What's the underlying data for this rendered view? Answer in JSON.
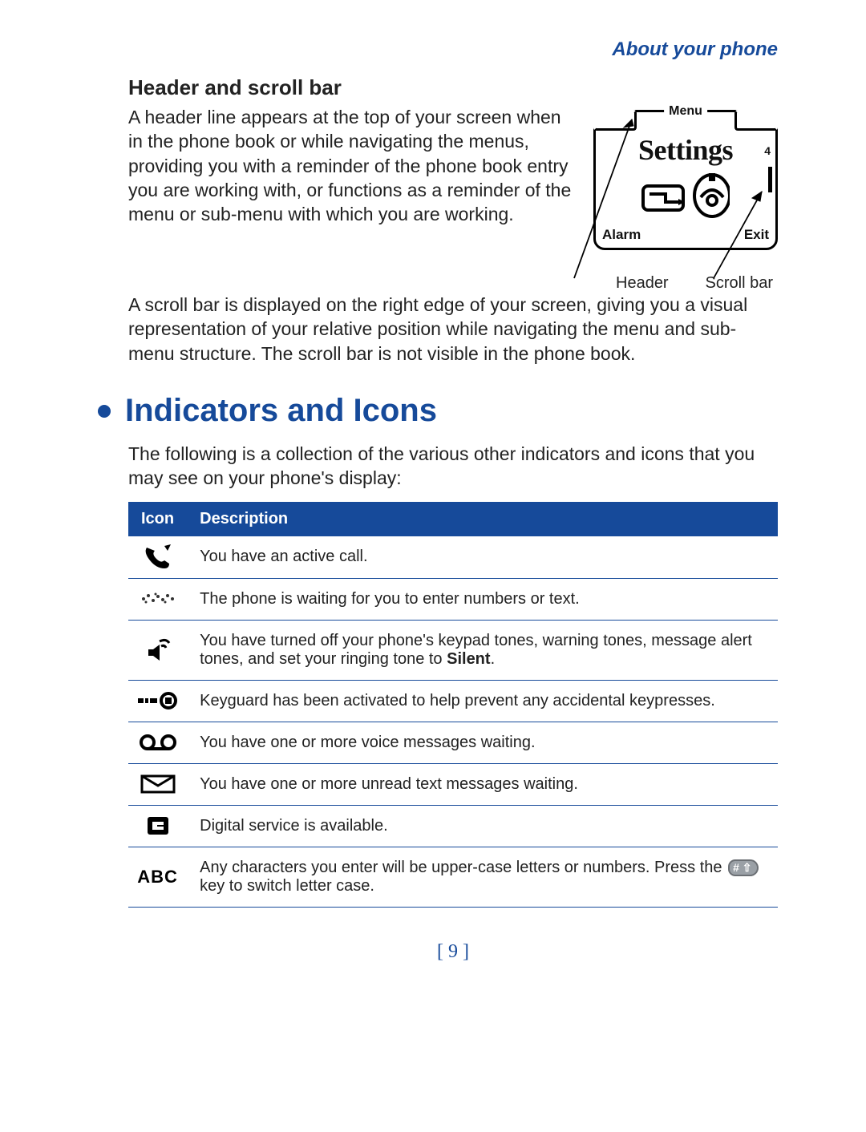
{
  "top_link": "About your phone",
  "subhead": "Header and scroll bar",
  "para1": "A header line appears at the top of your screen when in the phone book or while navigating the menus, providing you with a reminder of the phone book entry you are working with, or functions as a reminder of the menu or sub-menu with which you are working.",
  "fig": {
    "menu": "Menu",
    "settings": "Settings",
    "four": "4",
    "left": "Alarm",
    "right": "Exit",
    "label_header": "Header",
    "label_scroll": "Scroll bar"
  },
  "para2": "A scroll bar is displayed on the right edge of your screen, giving you a visual representation of your relative position while navigating the menu and sub-menu structure. The scroll bar is not visible in the phone book.",
  "h1": "Indicators and Icons",
  "intro": "The following is a collection of the various other indicators and icons that you may see on your phone's display:",
  "table": {
    "header_bg": "#164a9a",
    "header_fg": "#ffffff",
    "columns": [
      "Icon",
      "Description"
    ],
    "rows": [
      {
        "icon": "call",
        "desc": "You have an active call."
      },
      {
        "icon": "waiting",
        "desc": "The phone is waiting for you to enter numbers or text."
      },
      {
        "icon": "silent",
        "desc_pre": "You have turned off your phone's keypad tones, warning tones, message alert tones, and set your ringing tone to ",
        "bold": "Silent",
        "desc_post": "."
      },
      {
        "icon": "keyguard",
        "desc": "Keyguard has been activated to help prevent any accidental keypresses."
      },
      {
        "icon": "voicemail",
        "desc": "You have one or more voice messages waiting."
      },
      {
        "icon": "message",
        "desc": "You have one or more unread text messages waiting."
      },
      {
        "icon": "digital",
        "desc": "Digital service is available."
      },
      {
        "icon": "abc",
        "desc_pre": "Any characters you enter will be upper-case letters or numbers. Press the ",
        "key": "# ⇧",
        "desc_post": " key to switch letter case."
      }
    ]
  },
  "page_number": "[ 9 ]",
  "colors": {
    "blue": "#164a9a",
    "text": "#222222"
  }
}
